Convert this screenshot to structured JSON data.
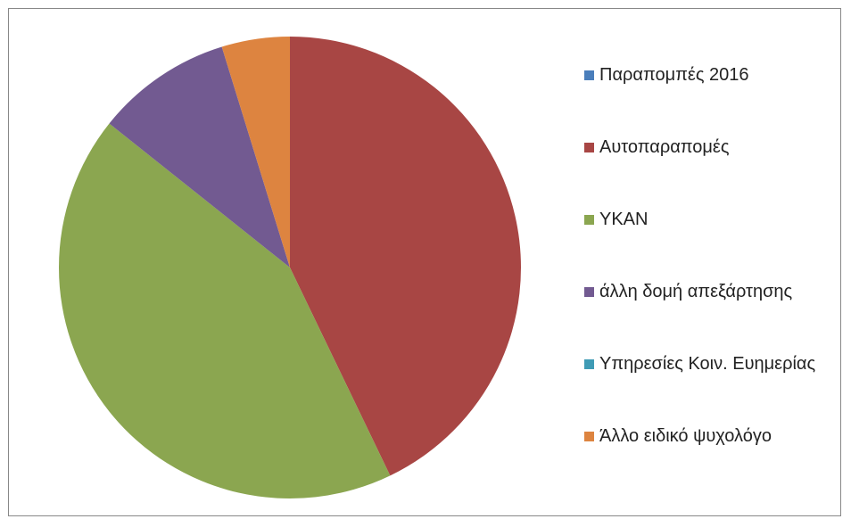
{
  "chart_data": {
    "type": "pie",
    "categories": [
      "Παραπομπές 2016",
      "Αυτοπαραπομές",
      "ΥΚΑΝ",
      "άλλη δομή απεξάρτησης",
      "Υπηρεσίες Κοιν. Ευημερίας",
      "Άλλο ειδικό ψυχολόγο"
    ],
    "values": [
      0,
      9,
      9,
      2,
      0,
      1
    ],
    "colors": [
      "#4a7ebb",
      "#a84644",
      "#8ba650",
      "#725a91",
      "#3f9bb5",
      "#dd8440"
    ],
    "legend": "right"
  }
}
